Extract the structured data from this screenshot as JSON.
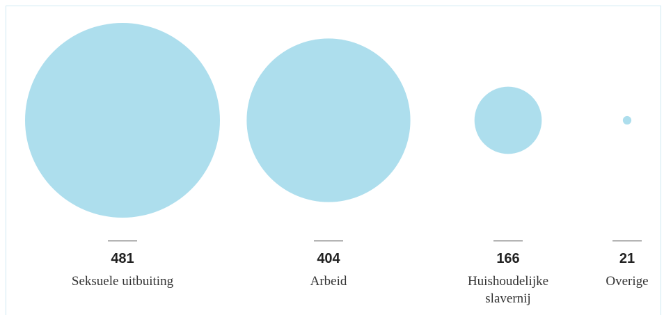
{
  "chart_data": {
    "type": "bubble",
    "categories": [
      "Seksuele uitbuiting",
      "Arbeid",
      "Huishoudelijke slavernij",
      "Overige"
    ],
    "values": [
      481,
      404,
      166,
      21
    ],
    "color": "#addeed"
  }
}
